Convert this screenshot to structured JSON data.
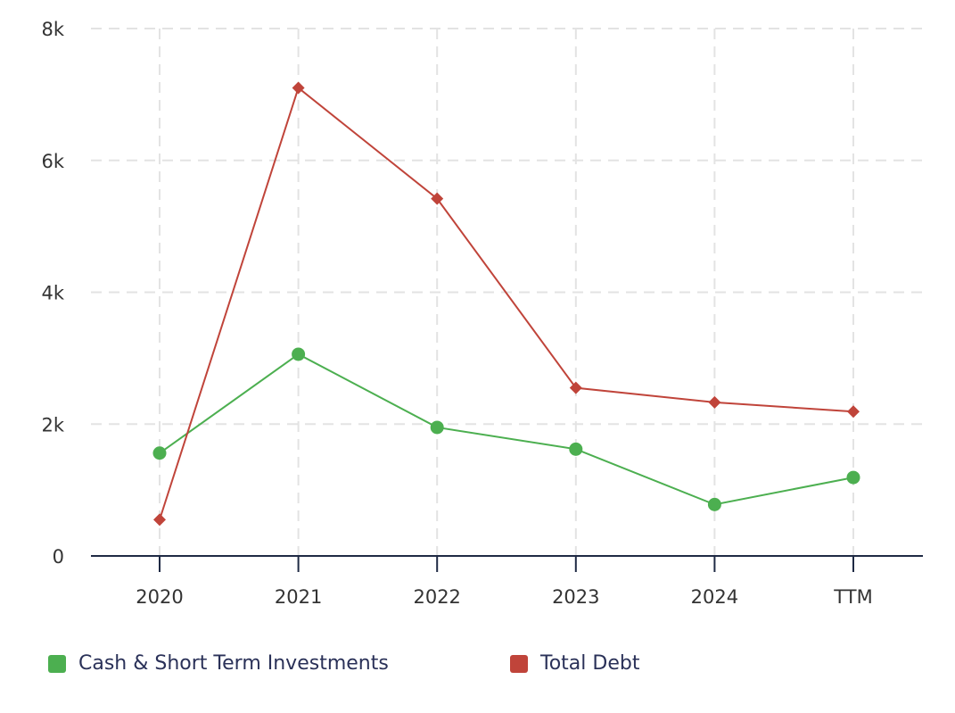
{
  "chart_data": {
    "type": "line",
    "categories": [
      "2020",
      "2021",
      "2022",
      "2023",
      "2024",
      "TTM"
    ],
    "ylim": [
      0,
      8000
    ],
    "y_ticks": [
      0,
      2000,
      4000,
      6000,
      8000
    ],
    "y_tick_labels": [
      "0",
      "2k",
      "4k",
      "6k",
      "8k"
    ],
    "grid": true,
    "legend_position": "bottom",
    "series": [
      {
        "name": "Cash & Short Term Investments",
        "color": "#4caf50",
        "marker": "circle",
        "values": [
          1560,
          3060,
          1950,
          1620,
          780,
          1190
        ]
      },
      {
        "name": "Total Debt",
        "color": "#c0443a",
        "marker": "diamond",
        "values": [
          550,
          7100,
          5420,
          2550,
          2330,
          2190
        ]
      }
    ]
  },
  "legend": {
    "items": [
      {
        "label": "Cash & Short Term Investments",
        "color": "#4caf50"
      },
      {
        "label": "Total Debt",
        "color": "#c0443a"
      }
    ]
  }
}
